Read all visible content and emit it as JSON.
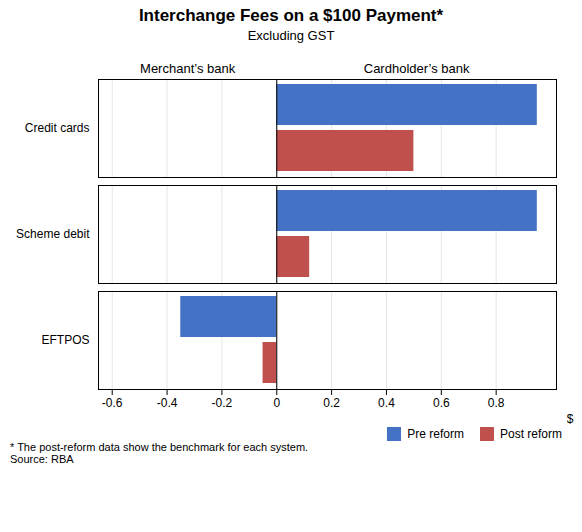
{
  "chart_data": {
    "type": "bar",
    "orientation": "horizontal",
    "title": "Interchange Fees on a $100 Payment*",
    "subtitle": "Excluding GST",
    "categories": [
      "EFTPOS",
      "Scheme debit",
      "Credit cards"
    ],
    "series": [
      {
        "name": "Pre reform",
        "color": "#4472C4",
        "values": [
          -0.35,
          0.95,
          0.95
        ]
      },
      {
        "name": "Post reform",
        "color": "#C0504D",
        "values": [
          -0.05,
          0.12,
          0.5
        ]
      }
    ],
    "xlabel": "$",
    "xlim": [
      -0.65,
      1.02
    ],
    "xticks": [
      -0.6,
      -0.4,
      -0.2,
      0,
      0.2,
      0.4,
      0.6,
      0.8
    ],
    "grid": true,
    "legend": "lower right",
    "annotations": [
      "Merchant’s bank",
      "Cardholder’s bank"
    ],
    "footnote": "* The post-reform data show the benchmark for each system.",
    "source": "Source: RBA"
  }
}
